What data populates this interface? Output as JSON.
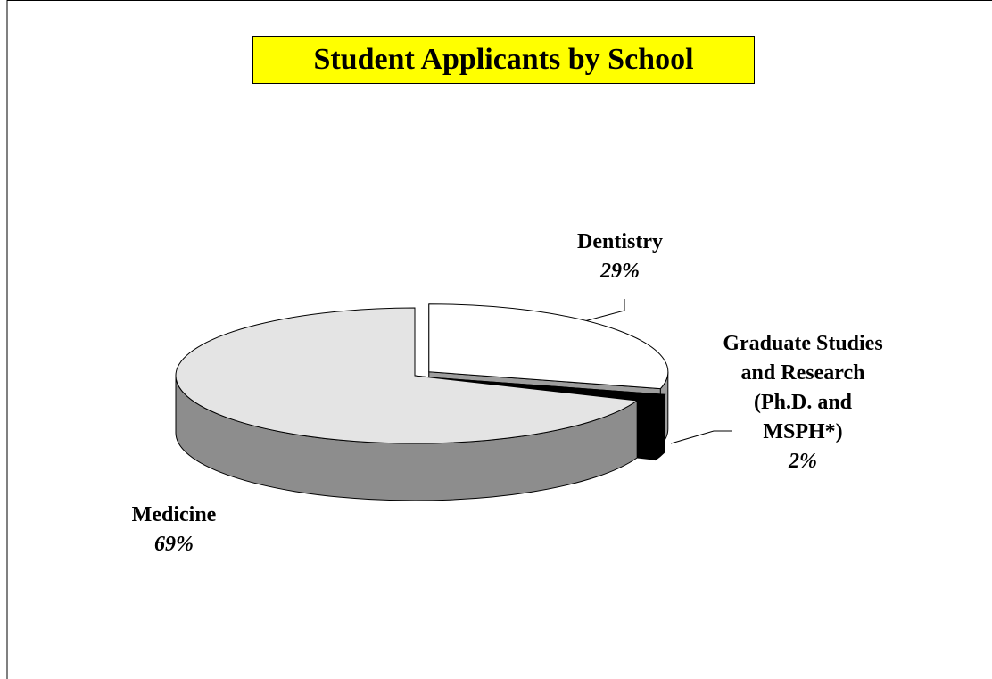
{
  "chart_data": {
    "type": "pie",
    "title": "Student Applicants by School",
    "categories": [
      "Dentistry",
      "Graduate Studies and Research (Ph.D. and MSPH*)",
      "Medicine"
    ],
    "values": [
      29,
      2,
      69
    ],
    "value_labels": [
      "29%",
      "2%",
      "69%"
    ],
    "colors": [
      "#ffffff",
      "#000000",
      "#e4e4e4"
    ],
    "title_background": "#ffff00"
  }
}
